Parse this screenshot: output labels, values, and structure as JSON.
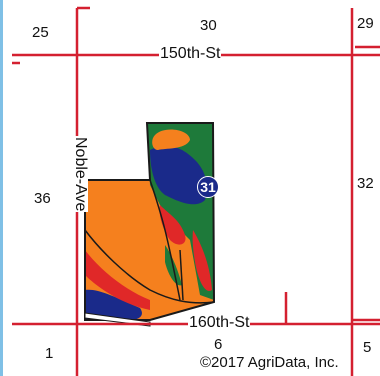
{
  "sections": {
    "s25": "25",
    "s30": "30",
    "s29": "29",
    "s36": "36",
    "s32": "32",
    "s1": "1",
    "s6": "6",
    "s5": "5",
    "field_marker": "31"
  },
  "roads": {
    "north": "150th-St",
    "south": "160th-St",
    "west": "Noble-Ave"
  },
  "copyright": "©2017 AgriData, Inc.",
  "colors": {
    "road": "#d42030",
    "orange": "#f5801e",
    "green": "#1e7a3a",
    "blue": "#1a2a8a",
    "red": "#e02828",
    "outline": "#1a1a1a",
    "border": "#3a9ad0"
  }
}
